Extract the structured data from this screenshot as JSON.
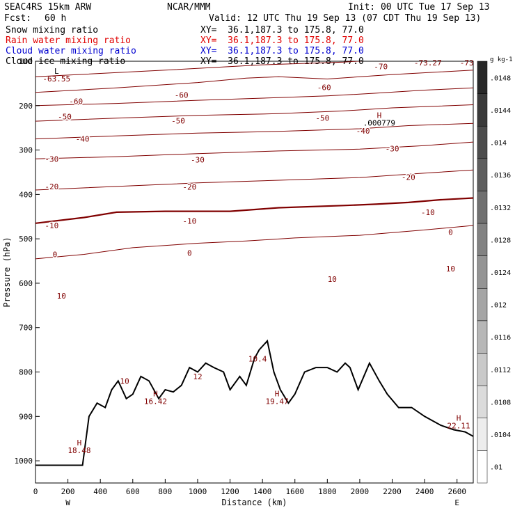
{
  "header": {
    "model": "SEAC4RS 15km ARW",
    "org": "NCAR/MMM",
    "init": "Init: 00 UTC Tue 17 Sep 13",
    "fcst_label": "Fcst:",
    "fcst_value": "60 h",
    "valid": "Valid: 12 UTC Thu 19 Sep 13 (07 CDT Thu 19 Sep 13)"
  },
  "fields": [
    {
      "name": "Snow mixing ratio",
      "xy": "XY=  36.1,187.3 to 175.8, 77.0",
      "color": "#000000"
    },
    {
      "name": "Rain water mixing ratio",
      "xy": "XY=  36.1,187.3 to 175.8, 77.0",
      "color": "#e00000"
    },
    {
      "name": "Cloud water mixing ratio",
      "xy": "XY=  36.1,187.3 to 175.8, 77.0",
      "color": "#0000d0"
    },
    {
      "name": "Cloud ice mixing ratio",
      "xy": "XY=  36.1,187.3 to 175.8, 77.0",
      "color": "#000000"
    }
  ],
  "chart_data": {
    "type": "line",
    "title": "",
    "xlabel": "Distance (km)",
    "ylabel": "Pressure (hPa)",
    "xlim": [
      0,
      2700
    ],
    "ylim": [
      1050,
      100
    ],
    "x_ticks": [
      0,
      200,
      400,
      600,
      800,
      1000,
      1200,
      1400,
      1600,
      1800,
      2000,
      2200,
      2400,
      2600
    ],
    "y_ticks": [
      100,
      200,
      300,
      400,
      500,
      600,
      700,
      800,
      900,
      1000
    ],
    "left_end_label": "W",
    "right_end_label": "E",
    "contour_color": "#800000",
    "isotherms_degC": [
      {
        "value": -70,
        "points": [
          [
            0,
            135
          ],
          [
            800,
            120
          ],
          [
            1400,
            108
          ],
          [
            1900,
            102
          ],
          [
            2200,
            95
          ],
          [
            2600,
            90
          ],
          [
            2700,
            88
          ]
        ]
      },
      {
        "value": -60,
        "points": [
          [
            0,
            170
          ],
          [
            500,
            160
          ],
          [
            1000,
            148
          ],
          [
            1300,
            138
          ],
          [
            1500,
            135
          ],
          [
            1800,
            140
          ],
          [
            2200,
            130
          ],
          [
            2700,
            120
          ]
        ]
      },
      {
        "value": -50,
        "points": [
          [
            0,
            200
          ],
          [
            500,
            195
          ],
          [
            1000,
            188
          ],
          [
            1500,
            182
          ],
          [
            1800,
            178
          ],
          [
            2100,
            172
          ],
          [
            2400,
            165
          ],
          [
            2700,
            160
          ]
        ]
      },
      {
        "value": -40,
        "points": [
          [
            0,
            235
          ],
          [
            500,
            228
          ],
          [
            1000,
            222
          ],
          [
            1500,
            218
          ],
          [
            1900,
            212
          ],
          [
            2200,
            205
          ],
          [
            2700,
            198
          ]
        ]
      },
      {
        "value": -30,
        "points": [
          [
            0,
            275
          ],
          [
            500,
            268
          ],
          [
            1000,
            262
          ],
          [
            1500,
            258
          ],
          [
            2000,
            252
          ],
          [
            2300,
            245
          ],
          [
            2700,
            240
          ]
        ]
      },
      {
        "value": -20,
        "points": [
          [
            0,
            320
          ],
          [
            500,
            315
          ],
          [
            1000,
            308
          ],
          [
            1500,
            302
          ],
          [
            2000,
            298
          ],
          [
            2400,
            290
          ],
          [
            2700,
            282
          ]
        ]
      },
      {
        "value": -10,
        "points": [
          [
            0,
            390
          ],
          [
            500,
            382
          ],
          [
            1000,
            374
          ],
          [
            1500,
            368
          ],
          [
            2000,
            362
          ],
          [
            2400,
            352
          ],
          [
            2700,
            345
          ]
        ]
      },
      {
        "value": 0,
        "points": [
          [
            0,
            465
          ],
          [
            300,
            452
          ],
          [
            500,
            440
          ],
          [
            800,
            438
          ],
          [
            1200,
            438
          ],
          [
            1500,
            430
          ],
          [
            1900,
            425
          ],
          [
            2100,
            422
          ],
          [
            2300,
            418
          ],
          [
            2500,
            412
          ],
          [
            2700,
            408
          ]
        ]
      },
      {
        "value": 10,
        "points": [
          [
            0,
            545
          ],
          [
            300,
            535
          ],
          [
            600,
            520
          ],
          [
            1000,
            510
          ],
          [
            1300,
            505
          ],
          [
            1600,
            498
          ],
          [
            2000,
            492
          ],
          [
            2400,
            480
          ],
          [
            2700,
            470
          ]
        ]
      }
    ],
    "freezing_level_label": "0",
    "contour_labels": [
      {
        "text": "-70",
        "x": 2130,
        "p": 112
      },
      {
        "text": "-60",
        "x": 250,
        "p": 190
      },
      {
        "text": "-60",
        "x": 900,
        "p": 176
      },
      {
        "text": "-60",
        "x": 1780,
        "p": 159
      },
      {
        "text": "-50",
        "x": 180,
        "p": 225
      },
      {
        "text": "-50",
        "x": 880,
        "p": 234
      },
      {
        "text": "-50",
        "x": 1770,
        "p": 228
      },
      {
        "text": "-40",
        "x": 290,
        "p": 275
      },
      {
        "text": "-40",
        "x": 2020,
        "p": 257
      },
      {
        "text": "-30",
        "x": 100,
        "p": 320
      },
      {
        "text": "-30",
        "x": 1000,
        "p": 322
      },
      {
        "text": "-30",
        "x": 2200,
        "p": 297
      },
      {
        "text": "-20",
        "x": 100,
        "p": 382
      },
      {
        "text": "-20",
        "x": 950,
        "p": 383
      },
      {
        "text": "-20",
        "x": 2300,
        "p": 361
      },
      {
        "text": "-10",
        "x": 100,
        "p": 470
      },
      {
        "text": "-10",
        "x": 950,
        "p": 460
      },
      {
        "text": "-10",
        "x": 2420,
        "p": 440
      },
      {
        "text": "0",
        "x": 120,
        "p": 535
      },
      {
        "text": "0",
        "x": 950,
        "p": 532
      },
      {
        "text": "0",
        "x": 2560,
        "p": 485
      },
      {
        "text": "10",
        "x": 160,
        "p": 628
      },
      {
        "text": "10",
        "x": 1830,
        "p": 591
      },
      {
        "text": "10",
        "x": 2560,
        "p": 567
      }
    ],
    "extrema": [
      {
        "kind": "L",
        "value": "-63.55",
        "x": 130,
        "p": 128
      },
      {
        "kind": "H",
        "value": ".000779",
        "x": 2120,
        "p": 228
      },
      {
        "kind": "H",
        "value": "16.42",
        "x": 740,
        "p": 855
      },
      {
        "kind": "H",
        "value": "19.47",
        "x": 1490,
        "p": 855
      },
      {
        "kind": "H",
        "value": "18.48",
        "x": 270,
        "p": 965
      },
      {
        "kind": "H",
        "value": "22.11",
        "x": 2610,
        "p": 910
      }
    ],
    "other_labels": [
      {
        "text": "10",
        "x": 550,
        "p": 820
      },
      {
        "text": "12",
        "x": 1000,
        "p": 810
      },
      {
        "text": "10.4",
        "x": 1370,
        "p": 770
      },
      {
        "text": "-73.27",
        "x": 2420,
        "p": 103
      },
      {
        "text": "-73",
        "x": 2660,
        "p": 103
      }
    ],
    "terrain": [
      [
        0,
        1010
      ],
      [
        120,
        1010
      ],
      [
        290,
        1010
      ],
      [
        330,
        900
      ],
      [
        380,
        870
      ],
      [
        430,
        880
      ],
      [
        470,
        840
      ],
      [
        510,
        820
      ],
      [
        560,
        860
      ],
      [
        600,
        850
      ],
      [
        650,
        810
      ],
      [
        700,
        820
      ],
      [
        760,
        860
      ],
      [
        800,
        840
      ],
      [
        850,
        845
      ],
      [
        900,
        830
      ],
      [
        950,
        790
      ],
      [
        1000,
        800
      ],
      [
        1050,
        780
      ],
      [
        1100,
        790
      ],
      [
        1160,
        800
      ],
      [
        1200,
        840
      ],
      [
        1260,
        810
      ],
      [
        1300,
        830
      ],
      [
        1350,
        770
      ],
      [
        1380,
        750
      ],
      [
        1430,
        730
      ],
      [
        1470,
        800
      ],
      [
        1510,
        840
      ],
      [
        1560,
        870
      ],
      [
        1600,
        850
      ],
      [
        1660,
        800
      ],
      [
        1730,
        790
      ],
      [
        1800,
        790
      ],
      [
        1860,
        800
      ],
      [
        1910,
        780
      ],
      [
        1940,
        790
      ],
      [
        1990,
        840
      ],
      [
        2060,
        780
      ],
      [
        2120,
        820
      ],
      [
        2170,
        850
      ],
      [
        2240,
        880
      ],
      [
        2320,
        880
      ],
      [
        2400,
        900
      ],
      [
        2500,
        920
      ],
      [
        2580,
        930
      ],
      [
        2650,
        935
      ],
      [
        2700,
        945
      ]
    ],
    "colorbar": {
      "unit": "g kg-1",
      "labels": [
        ".0148",
        ".0144",
        ".014",
        ".0136",
        ".0132",
        ".0128",
        ".0124",
        ".012",
        ".0116",
        ".0112",
        ".0108",
        ".0104",
        ".01"
      ]
    }
  }
}
